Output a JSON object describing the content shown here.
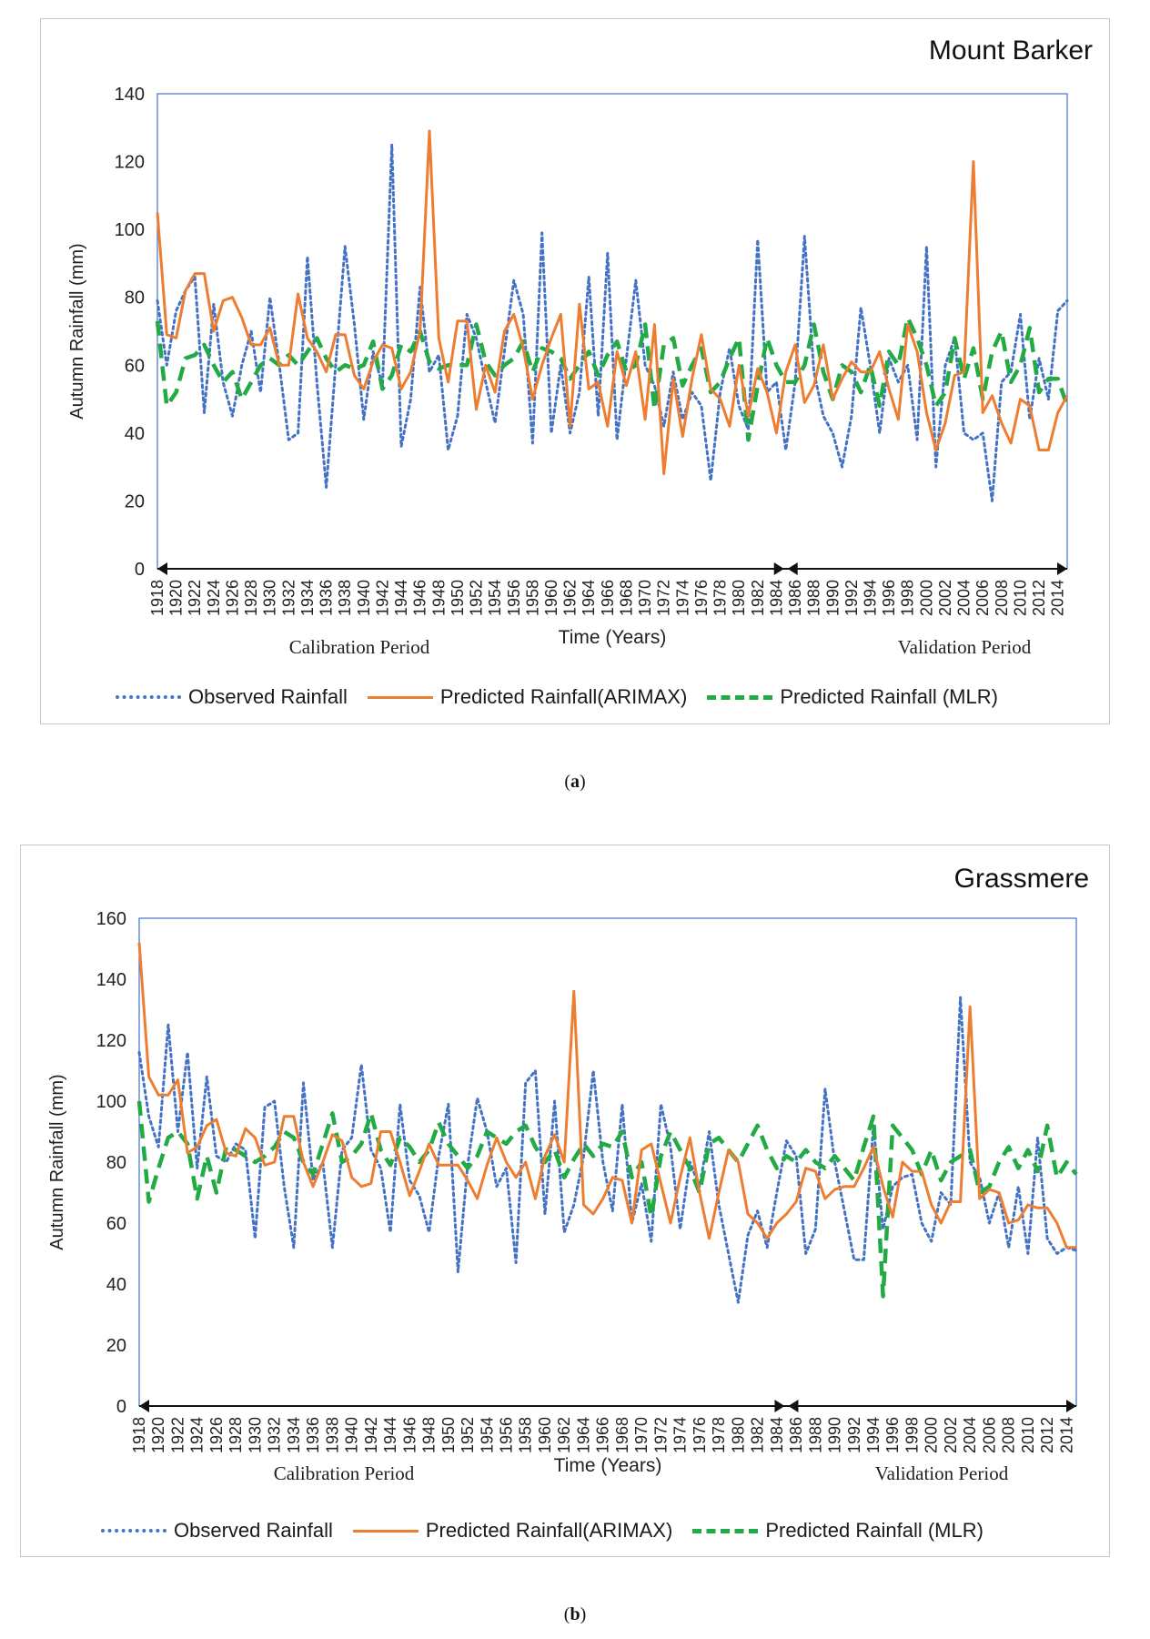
{
  "legend": {
    "observed": "Observed Rainfall",
    "arimax": "Predicted Rainfall(ARIMAX)",
    "mlr": "Predicted Rainfall (MLR)"
  },
  "colors": {
    "observed": "#4472c4",
    "arimax": "#ed7d31",
    "mlr": "#22aa44",
    "axis": "#4472c4"
  },
  "captions": {
    "a": "a",
    "b": "b"
  },
  "chart_data": [
    {
      "type": "line",
      "title": "Mount Barker",
      "xlabel": "Time (Years)",
      "ylabel": "Autumn Rainfall (mm)",
      "ylim": [
        0,
        140
      ],
      "yticks": [
        0,
        20,
        40,
        60,
        80,
        100,
        120,
        140
      ],
      "x_start": 1918,
      "x_end": 2015,
      "tick_years": [
        1918,
        1920,
        1922,
        1924,
        1926,
        1928,
        1930,
        1932,
        1934,
        1936,
        1938,
        1940,
        1942,
        1944,
        1946,
        1948,
        1950,
        1952,
        1954,
        1956,
        1958,
        1960,
        1962,
        1964,
        1966,
        1968,
        1970,
        1972,
        1974,
        1976,
        1978,
        1980,
        1982,
        1984,
        1986,
        1988,
        1990,
        1992,
        1994,
        1996,
        1998,
        2000,
        2002,
        2004,
        2006,
        2008,
        2010,
        2012,
        2014
      ],
      "tick_labels": [
        "1918",
        "1920",
        "1922",
        "1924",
        "1926",
        "1928",
        "1930",
        "1932",
        "1934",
        "1936",
        "1938",
        "1940",
        "1942",
        "1944",
        "1946",
        "1948",
        "1950",
        "1952",
        "1954",
        "1956",
        "1958",
        "1960",
        "1962",
        "1964",
        "1966",
        "1968",
        "1970",
        "1972",
        "1974",
        "1976",
        "1978",
        "1980",
        "1982",
        "1984",
        "1986",
        "1988",
        "1990",
        "1992",
        "1994",
        "1996",
        "1998",
        "2000",
        "2002",
        "2004",
        "2006",
        "2008",
        "2010",
        "2012",
        "2014"
      ],
      "split_year": 1985,
      "periods": {
        "calibration": "Calibration Period",
        "validation": "Validation Period"
      },
      "series": [
        {
          "name": "Observed Rainfall",
          "key": "observed",
          "values": [
            79,
            60,
            76,
            82,
            86,
            46,
            78,
            55,
            45,
            60,
            70,
            52,
            80,
            60,
            38,
            40,
            92,
            55,
            24,
            60,
            95,
            72,
            44,
            64,
            54,
            125,
            36,
            50,
            83,
            58,
            63,
            35,
            45,
            75,
            68,
            55,
            43,
            64,
            85,
            75,
            37,
            99,
            40,
            60,
            40,
            52,
            86,
            45,
            93,
            38,
            62,
            85,
            60,
            54,
            42,
            58,
            44,
            52,
            48,
            26,
            52,
            65,
            48,
            41,
            97,
            52,
            55,
            35,
            55,
            98,
            58,
            45,
            40,
            30,
            45,
            77,
            60,
            40,
            62,
            55,
            60,
            38,
            95,
            30,
            60,
            68,
            40,
            38,
            40,
            20,
            55,
            58,
            75,
            44,
            62,
            50,
            76,
            79
          ]
        },
        {
          "name": "Predicted Rainfall(ARIMAX)",
          "key": "arimax",
          "values": [
            105,
            69,
            68,
            82,
            87,
            87,
            70,
            79,
            80,
            74,
            66,
            66,
            71,
            60,
            60,
            81,
            68,
            64,
            58,
            69,
            69,
            57,
            53,
            61,
            66,
            65,
            53,
            58,
            70,
            129,
            68,
            55,
            73,
            73,
            47,
            60,
            52,
            70,
            75,
            65,
            50,
            60,
            68,
            75,
            42,
            78,
            53,
            55,
            42,
            64,
            54,
            64,
            44,
            72,
            28,
            56,
            39,
            56,
            69,
            53,
            50,
            42,
            60,
            45,
            59,
            52,
            40,
            58,
            66,
            49,
            54,
            66,
            50,
            56,
            61,
            58,
            58,
            64,
            53,
            44,
            72,
            64,
            46,
            35,
            43,
            57,
            58,
            120,
            46,
            51,
            43,
            37,
            50,
            48,
            35,
            35,
            46,
            51
          ]
        },
        {
          "name": "Predicted Rainfall (MLR)",
          "key": "mlr",
          "values": [
            73,
            48,
            52,
            62,
            63,
            66,
            60,
            55,
            58,
            50,
            55,
            60,
            62,
            60,
            63,
            60,
            64,
            68,
            62,
            58,
            60,
            59,
            60,
            67,
            53,
            57,
            66,
            64,
            70,
            61,
            59,
            60,
            60,
            60,
            72,
            61,
            57,
            60,
            62,
            67,
            58,
            65,
            64,
            62,
            56,
            60,
            64,
            57,
            63,
            67,
            58,
            60,
            72,
            47,
            66,
            68,
            54,
            60,
            65,
            52,
            55,
            62,
            68,
            38,
            54,
            68,
            60,
            55,
            55,
            60,
            72,
            58,
            50,
            60,
            58,
            52,
            60,
            48,
            64,
            60,
            74,
            68,
            60,
            48,
            52,
            68,
            56,
            65,
            50,
            64,
            70,
            55,
            60,
            71,
            52,
            56,
            56,
            48
          ]
        }
      ]
    },
    {
      "type": "line",
      "title": "Grassmere",
      "xlabel": "Time (Years)",
      "ylabel": "Autumn Rainfall (mm)",
      "ylim": [
        0,
        160
      ],
      "yticks": [
        0,
        20,
        40,
        60,
        80,
        100,
        120,
        140,
        160
      ],
      "x_start": 1918,
      "x_end": 2015,
      "tick_years": [
        1918,
        1920,
        1922,
        1924,
        1926,
        1928,
        1930,
        1932,
        1934,
        1936,
        1938,
        1940,
        1942,
        1944,
        1946,
        1948,
        1950,
        1952,
        1954,
        1956,
        1958,
        1960,
        1962,
        1964,
        1966,
        1968,
        1970,
        1972,
        1974,
        1976,
        1978,
        1980,
        1982,
        1984,
        1986,
        1988,
        1990,
        1992,
        1994,
        1996,
        1998,
        2000,
        2002,
        2004,
        2006,
        2008,
        2010,
        2012,
        2014
      ],
      "tick_labels": [
        "1918",
        "1920",
        "1922",
        "1924",
        "1926",
        "1928",
        "1930",
        "1932",
        "1934",
        "1936",
        "1938",
        "1940",
        "1942",
        "1944",
        "1946",
        "1948",
        "1950",
        "1952",
        "1954",
        "1956",
        "1958",
        "1960",
        "1962",
        "1964",
        "1966",
        "1968",
        "1970",
        "1972",
        "1974",
        "1976",
        "1978",
        "1980",
        "1982",
        "1984",
        "1986",
        "1988",
        "1990",
        "1992",
        "1994",
        "1996",
        "1998",
        "2000",
        "2002",
        "2004",
        "2006",
        "2008",
        "2010",
        "2012",
        "2014"
      ],
      "split_year": 1985,
      "periods": {
        "calibration": "Calibration Period",
        "validation": "Validation Period"
      },
      "series": [
        {
          "name": "Observed Rainfall",
          "key": "observed",
          "values": [
            116,
            95,
            85,
            125,
            90,
            116,
            78,
            108,
            82,
            80,
            86,
            84,
            55,
            98,
            100,
            72,
            52,
            106,
            74,
            80,
            52,
            84,
            88,
            112,
            84,
            78,
            57,
            99,
            74,
            69,
            57,
            82,
            99,
            44,
            79,
            101,
            90,
            72,
            78,
            47,
            106,
            110,
            63,
            100,
            57,
            66,
            82,
            110,
            80,
            64,
            99,
            60,
            73,
            54,
            99,
            85,
            58,
            80,
            72,
            90,
            66,
            50,
            34,
            56,
            64,
            52,
            70,
            87,
            82,
            50,
            58,
            104,
            80,
            64,
            48,
            48,
            92,
            58,
            72,
            75,
            76,
            60,
            54,
            70,
            66,
            134,
            80,
            75,
            60,
            70,
            52,
            72,
            50,
            88,
            55,
            50,
            52,
            51
          ]
        },
        {
          "name": "Predicted Rainfall(ARIMAX)",
          "key": "arimax",
          "values": [
            152,
            108,
            102,
            102,
            107,
            83,
            85,
            92,
            94,
            83,
            82,
            91,
            88,
            79,
            80,
            95,
            95,
            80,
            72,
            80,
            89,
            87,
            75,
            72,
            73,
            90,
            90,
            80,
            69,
            77,
            86,
            79,
            79,
            79,
            74,
            68,
            79,
            88,
            80,
            75,
            80,
            68,
            82,
            89,
            80,
            136,
            66,
            63,
            68,
            75,
            74,
            60,
            84,
            86,
            73,
            60,
            75,
            88,
            70,
            55,
            70,
            84,
            80,
            63,
            60,
            55,
            60,
            63,
            67,
            78,
            77,
            68,
            71,
            72,
            72,
            78,
            85,
            72,
            62,
            80,
            77,
            77,
            66,
            60,
            67,
            67,
            131,
            68,
            71,
            70,
            60,
            61,
            66,
            65,
            65,
            60,
            52,
            52
          ]
        },
        {
          "name": "Predicted Rainfall (MLR)",
          "key": "mlr",
          "values": [
            100,
            67,
            78,
            88,
            90,
            86,
            68,
            82,
            70,
            85,
            84,
            82,
            80,
            82,
            85,
            90,
            88,
            80,
            76,
            86,
            96,
            80,
            82,
            86,
            96,
            84,
            79,
            88,
            85,
            80,
            84,
            93,
            86,
            82,
            78,
            82,
            90,
            88,
            86,
            90,
            92,
            85,
            80,
            84,
            75,
            81,
            86,
            82,
            86,
            85,
            90,
            75,
            80,
            62,
            82,
            90,
            84,
            78,
            70,
            86,
            88,
            84,
            80,
            86,
            92,
            84,
            78,
            82,
            80,
            84,
            80,
            78,
            82,
            78,
            74,
            85,
            95,
            36,
            92,
            88,
            84,
            76,
            84,
            74,
            80,
            82,
            84,
            70,
            72,
            80,
            85,
            78,
            84,
            77,
            92,
            75,
            80,
            76
          ]
        }
      ]
    }
  ]
}
